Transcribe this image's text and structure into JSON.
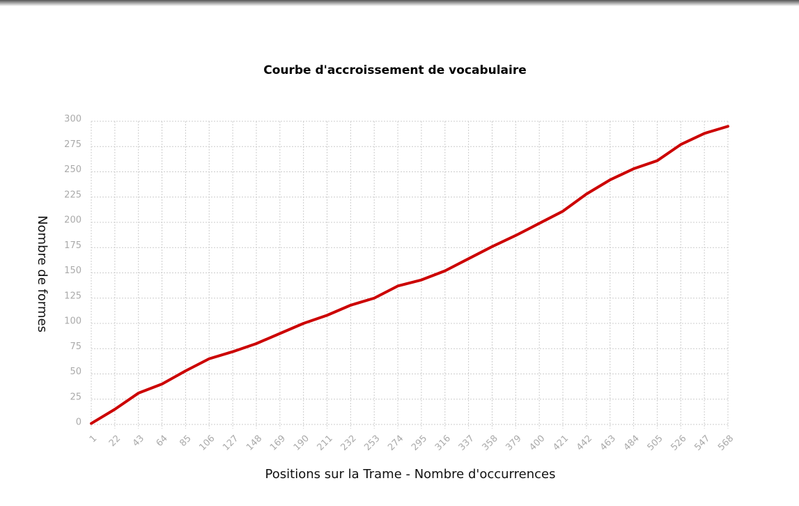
{
  "chart_data": {
    "type": "line",
    "title": "Courbe d'accroissement de vocabulaire",
    "x_label": "Positions sur la Trame - Nombre d'occurrences",
    "y_label": "Nombre de formes",
    "x": [
      1,
      22,
      43,
      64,
      85,
      106,
      127,
      148,
      169,
      190,
      211,
      232,
      253,
      274,
      295,
      316,
      337,
      358,
      379,
      400,
      421,
      442,
      463,
      484,
      505,
      526,
      547,
      568
    ],
    "values": [
      1,
      15,
      31,
      40,
      53,
      65,
      72,
      80,
      90,
      100,
      108,
      118,
      125,
      137,
      143,
      152,
      164,
      176,
      187,
      199,
      211,
      228,
      242,
      253,
      261,
      277,
      288,
      295
    ],
    "color": "#cc0000",
    "xlim": [
      1,
      568
    ],
    "xticks": [
      1,
      22,
      43,
      64,
      85,
      106,
      127,
      148,
      169,
      190,
      211,
      232,
      253,
      274,
      295,
      316,
      337,
      358,
      379,
      400,
      421,
      442,
      463,
      484,
      505,
      526,
      547,
      568
    ],
    "ylim": [
      0,
      300
    ],
    "yticks": [
      0,
      25,
      50,
      75,
      100,
      125,
      150,
      175,
      200,
      225,
      250,
      275,
      300
    ],
    "grid": true
  }
}
